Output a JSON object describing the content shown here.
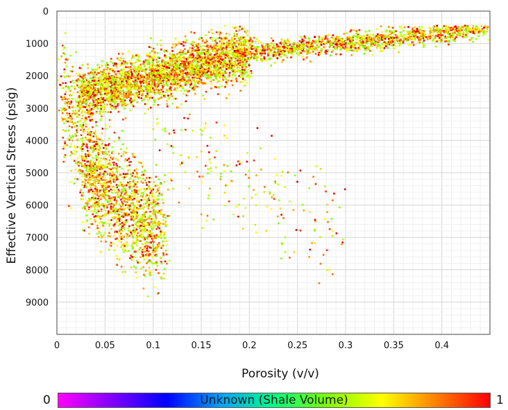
{
  "chart_data": {
    "type": "scatter",
    "xlabel": "Porosity (v/v)",
    "ylabel": "Effective Vertical Stress (psig)",
    "xlim": [
      0,
      0.45
    ],
    "ylim": [
      0,
      10000
    ],
    "y_inverted": true,
    "grid": true,
    "x_ticks": [
      "0",
      "0.05",
      "0.1",
      "0.15",
      "0.2",
      "0.25",
      "0.3",
      "0.35",
      "0.4"
    ],
    "x_tick_values": [
      0,
      0.05,
      0.1,
      0.15,
      0.2,
      0.25,
      0.3,
      0.35,
      0.4
    ],
    "y_ticks": [
      "0",
      "1000",
      "2000",
      "3000",
      "4000",
      "5000",
      "6000",
      "7000",
      "8000",
      "9000"
    ],
    "y_tick_values": [
      0,
      1000,
      2000,
      3000,
      4000,
      5000,
      6000,
      7000,
      8000,
      9000
    ],
    "colorbar": {
      "label": "Unknown (Shale Volume)",
      "min_label": "0",
      "max_label": "1",
      "colors": [
        "#ff00ff",
        "#8000ff",
        "#0000ff",
        "#00a0ff",
        "#00ff80",
        "#80ff00",
        "#ffff00",
        "#ff8000",
        "#ff0000"
      ]
    },
    "clusters": [
      {
        "x": [
          0.025,
          0.2
        ],
        "y_center": [
          2600,
          1300
        ],
        "y_spread": 700,
        "weight": 0.42
      },
      {
        "x": [
          0.2,
          0.445
        ],
        "y_center": [
          1300,
          550
        ],
        "y_spread": 300,
        "weight": 0.3
      },
      {
        "x": [
          0.03,
          0.11
        ],
        "y_center": [
          5000,
          7000
        ],
        "y_spread": 1500,
        "weight": 0.2
      },
      {
        "x": [
          0.005,
          0.04
        ],
        "y_center": [
          2500,
          5000
        ],
        "y_spread": 1600,
        "weight": 0.05
      },
      {
        "x": [
          0.1,
          0.3
        ],
        "y_center": [
          4000,
          7000
        ],
        "y_spread": 1500,
        "weight": 0.03
      }
    ],
    "point_count": 7000
  }
}
